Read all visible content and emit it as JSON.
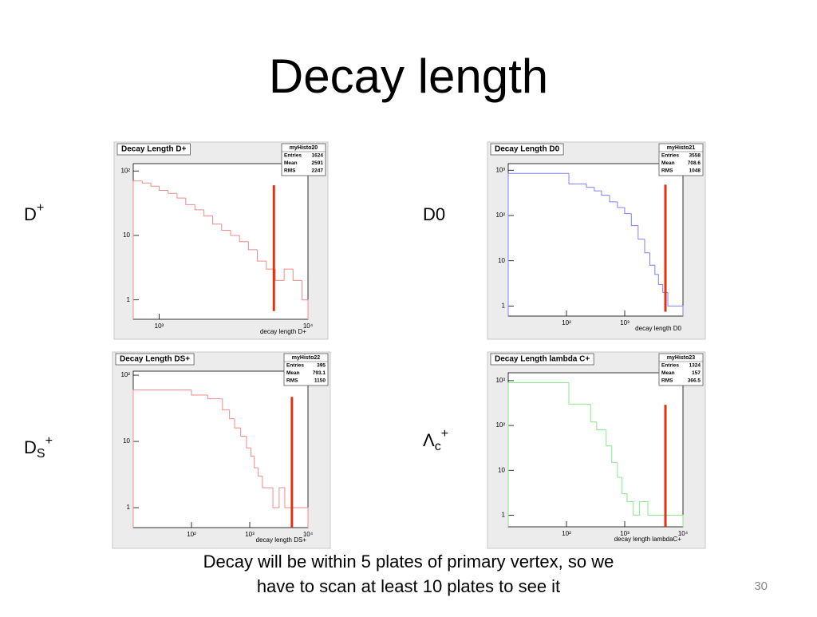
{
  "title": "Decay length",
  "labels": [
    {
      "base": "D",
      "sup": "+"
    },
    {
      "base": "D0"
    },
    {
      "base": "D",
      "sub": "S",
      "sup": "+"
    },
    {
      "base": "Λ",
      "sub": "c",
      "sup": "+"
    }
  ],
  "caption": [
    "Decay will be within 5 plates of primary vertex, so we",
    "have to scan at least 10 plates to see it"
  ],
  "page_number": "30",
  "chart_data": [
    {
      "type": "histogram",
      "title": "Decay Length D+",
      "xlabel": "decay length D+",
      "color": "#f08a8a",
      "bins": [
        670,
        770,
        880,
        1000,
        1150,
        1320,
        1510,
        1740,
        2000,
        2290,
        2630,
        3020,
        3470,
        3980,
        4570,
        5250,
        6030,
        6920,
        7940,
        9120,
        10000
      ],
      "counts": [
        70,
        65,
        58,
        50,
        45,
        38,
        30,
        25,
        20,
        15,
        12,
        10,
        8,
        6,
        4,
        3,
        2,
        3,
        2,
        1
      ],
      "xlim": [
        670,
        10000
      ],
      "ylim": [
        0.5,
        130
      ],
      "xlog": true,
      "ylog": true,
      "xticks": [
        {
          "value": 1000,
          "label": "10³"
        },
        {
          "value": 10000,
          "label": "10⁴"
        }
      ],
      "yticks": [
        1,
        10,
        {
          "value": 100,
          "label": "10²"
        }
      ],
      "stats": {
        "name": "myHisto20",
        "rows": [
          [
            "Entries",
            "1624"
          ],
          [
            "Mean",
            "2591"
          ],
          [
            "RMS",
            "2247"
          ]
        ]
      },
      "marker": {
        "x": 5900,
        "y": [
          0.67,
          60
        ],
        "color": "#dd3311"
      }
    },
    {
      "type": "histogram",
      "title": "Decay Length D0",
      "xlabel": "decay length D0",
      "color": "#7f7fff",
      "bins": [
        10,
        110,
        220,
        300,
        400,
        550,
        750,
        1000,
        1300,
        1700,
        2200,
        2700,
        3300,
        3800,
        4500,
        5500,
        7000,
        10000
      ],
      "counts": [
        850,
        500,
        420,
        350,
        280,
        200,
        150,
        110,
        60,
        30,
        15,
        8,
        5,
        3,
        2,
        1,
        1
      ],
      "xlim": [
        10,
        10000
      ],
      "ylim": [
        0.6,
        1400
      ],
      "xlog": true,
      "ylog": true,
      "xticks": [
        {
          "value": 100,
          "label": "10²"
        },
        {
          "value": 1000,
          "label": "10³"
        }
      ],
      "yticks": [
        1,
        10,
        {
          "value": 100,
          "label": "10²"
        },
        {
          "value": 1000,
          "label": "10³"
        }
      ],
      "stats": {
        "name": "myHisto21",
        "rows": [
          [
            "Entries",
            "3558"
          ],
          [
            "Mean",
            "708.6"
          ],
          [
            "RMS",
            "1048"
          ]
        ]
      },
      "marker": {
        "x": 5000,
        "y": [
          0.75,
          480
        ],
        "color": "#dd3311"
      }
    },
    {
      "type": "histogram",
      "title": "Decay Length DS+",
      "xlabel": "decay length DS+",
      "color": "#f08a8a",
      "bins": [
        10,
        100,
        190,
        340,
        450,
        550,
        700,
        880,
        1050,
        1200,
        1400,
        1650,
        2000,
        2500,
        3200,
        4000,
        5000,
        6500,
        8000,
        10000
      ],
      "counts": [
        60,
        50,
        44,
        30,
        22,
        16,
        12,
        8,
        6,
        4,
        3,
        2,
        2,
        1,
        2,
        1,
        1,
        1,
        1
      ],
      "xlim": [
        10,
        10000
      ],
      "ylim": [
        0.5,
        115
      ],
      "xlog": true,
      "ylog": true,
      "xticks": [
        {
          "value": 100,
          "label": "10²"
        },
        {
          "value": 1000,
          "label": "10³"
        },
        {
          "value": 10000,
          "label": "10⁴"
        }
      ],
      "yticks": [
        1,
        10,
        {
          "value": 100,
          "label": "10²"
        }
      ],
      "stats": {
        "name": "myHisto22",
        "rows": [
          [
            "Entries",
            "395"
          ],
          [
            "Mean",
            "793.1"
          ],
          [
            "RMS",
            "1150"
          ]
        ]
      },
      "marker": {
        "x": 5300,
        "y": [
          0.5,
          47
        ],
        "color": "#dd3311"
      }
    },
    {
      "type": "histogram",
      "title": "Decay Length lambda C+",
      "xlabel": "decay length lambdaC+",
      "color": "#88e888",
      "bins": [
        10,
        110,
        260,
        330,
        480,
        600,
        750,
        900,
        1100,
        1400,
        1800,
        2500,
        3500,
        5000,
        7000,
        10000
      ],
      "counts": [
        900,
        300,
        120,
        80,
        35,
        15,
        7,
        3,
        2,
        1,
        2,
        1,
        1,
        1,
        1
      ],
      "xlim": [
        10,
        10000
      ],
      "ylim": [
        0.55,
        1500
      ],
      "xlog": true,
      "ylog": true,
      "xticks": [
        {
          "value": 100,
          "label": "10²"
        },
        {
          "value": 1000,
          "label": "10³"
        },
        {
          "value": 10000,
          "label": "10⁴"
        }
      ],
      "yticks": [
        1,
        10,
        {
          "value": 100,
          "label": "10²"
        },
        {
          "value": 1000,
          "label": "10³"
        }
      ],
      "stats": {
        "name": "myHisto23",
        "rows": [
          [
            "Entries",
            "1324"
          ],
          [
            "Mean",
            "157"
          ],
          [
            "RMS",
            "366.5"
          ]
        ]
      },
      "marker": {
        "x": 5000,
        "y": [
          0.55,
          290
        ],
        "color": "#dd3311"
      }
    }
  ]
}
